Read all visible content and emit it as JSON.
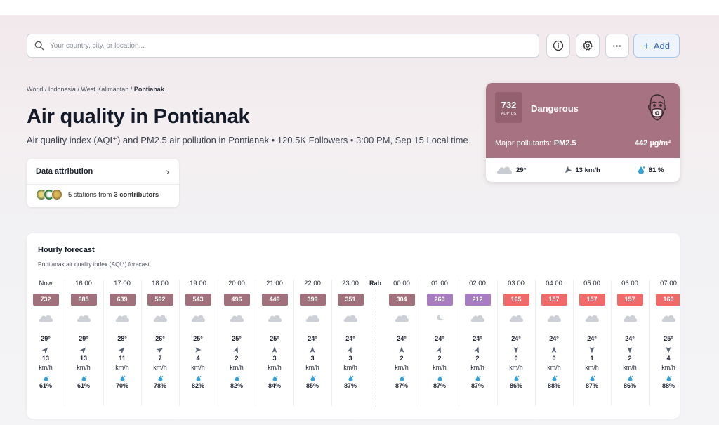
{
  "search": {
    "placeholder": "Your country, city, or location..."
  },
  "toolbar": {
    "add_label": "Add",
    "add_icon": "plus-icon",
    "info_icon": "info-icon",
    "settings_icon": "gear-icon",
    "more_icon": "more-icon",
    "more_label": "···"
  },
  "breadcrumb": {
    "items": [
      "World",
      "Indonesia",
      "West Kalimantan"
    ],
    "current": "Pontianak",
    "sep": " / "
  },
  "page_title": "Air quality in Pontianak",
  "subtitle": "Air quality index (AQI⁺) and PM2.5 air pollution in Pontianak • 120.5K Followers • 3:00 PM, Sep 15 Local time",
  "attribution": {
    "title": "Data attribution",
    "text_prefix": "5 stations from ",
    "contributors": "3 contributors"
  },
  "aqi_card": {
    "value": "732",
    "unit": "AQI⁺ US",
    "status": "Dangerous",
    "pollutant_label": "Major pollutants: ",
    "pollutant": "PM2.5",
    "concentration": "442 µg/m³",
    "colors": {
      "card": "#a77382",
      "box": "#93606f"
    },
    "weather": {
      "temp": "29°",
      "wind": "13 km/h",
      "humidity": "61 %"
    }
  },
  "forecast": {
    "title": "Hourly forecast",
    "subtitle": "Pontianak air quality index (AQI⁺) forecast",
    "day_label": "Rab",
    "hours": [
      {
        "time": "Now",
        "aqi": "732",
        "color": "#a0707c",
        "weather": "cloudy",
        "temp": "29°",
        "wind_dir": 225,
        "wind": "13",
        "unit": "km/h",
        "hum": "61%"
      },
      {
        "time": "16.00",
        "aqi": "685",
        "color": "#a0707c",
        "weather": "cloudy",
        "temp": "29°",
        "wind_dir": 225,
        "wind": "13",
        "unit": "km/h",
        "hum": "61%"
      },
      {
        "time": "17.00",
        "aqi": "639",
        "color": "#a0707c",
        "weather": "cloudy",
        "temp": "28°",
        "wind_dir": 225,
        "wind": "11",
        "unit": "km/h",
        "hum": "70%"
      },
      {
        "time": "18.00",
        "aqi": "592",
        "color": "#a0707c",
        "weather": "cloudy",
        "temp": "26°",
        "wind_dir": 240,
        "wind": "7",
        "unit": "km/h",
        "hum": "78%"
      },
      {
        "time": "19.00",
        "aqi": "543",
        "color": "#a0707c",
        "weather": "cloudy",
        "temp": "25°",
        "wind_dir": 270,
        "wind": "4",
        "unit": "km/h",
        "hum": "82%"
      },
      {
        "time": "20.00",
        "aqi": "496",
        "color": "#a0707c",
        "weather": "cloudy",
        "temp": "25°",
        "wind_dir": 200,
        "wind": "2",
        "unit": "km/h",
        "hum": "82%"
      },
      {
        "time": "21.00",
        "aqi": "449",
        "color": "#a0707c",
        "weather": "cloudy",
        "temp": "25°",
        "wind_dir": 180,
        "wind": "3",
        "unit": "km/h",
        "hum": "84%"
      },
      {
        "time": "22.00",
        "aqi": "399",
        "color": "#a0707c",
        "weather": "partly-cloudy",
        "temp": "24°",
        "wind_dir": 180,
        "wind": "3",
        "unit": "km/h",
        "hum": "85%"
      },
      {
        "time": "23.00",
        "aqi": "351",
        "color": "#a0707c",
        "weather": "partly-cloudy",
        "temp": "24°",
        "wind_dir": 200,
        "wind": "3",
        "unit": "km/h",
        "hum": "87%"
      },
      {
        "time": "00.00",
        "aqi": "304",
        "color": "#a0707c",
        "weather": "partly-cloudy",
        "temp": "24°",
        "wind_dir": 180,
        "wind": "2",
        "unit": "km/h",
        "hum": "87%"
      },
      {
        "time": "01.00",
        "aqi": "260",
        "color": "#a77cc0",
        "weather": "night",
        "temp": "24°",
        "wind_dir": 200,
        "wind": "2",
        "unit": "km/h",
        "hum": "87%"
      },
      {
        "time": "02.00",
        "aqi": "212",
        "color": "#a77cc0",
        "weather": "cloudy",
        "temp": "24°",
        "wind_dir": 200,
        "wind": "2",
        "unit": "km/h",
        "hum": "87%"
      },
      {
        "time": "03.00",
        "aqi": "165",
        "color": "#f06a6a",
        "weather": "cloudy",
        "temp": "24°",
        "wind_dir": 0,
        "wind": "0",
        "unit": "km/h",
        "hum": "86%"
      },
      {
        "time": "04.00",
        "aqi": "157",
        "color": "#f06a6a",
        "weather": "cloudy",
        "temp": "24°",
        "wind_dir": 180,
        "wind": "0",
        "unit": "km/h",
        "hum": "88%"
      },
      {
        "time": "05.00",
        "aqi": "157",
        "color": "#f06a6a",
        "weather": "cloudy",
        "temp": "24°",
        "wind_dir": 0,
        "wind": "1",
        "unit": "km/h",
        "hum": "87%"
      },
      {
        "time": "06.00",
        "aqi": "157",
        "color": "#f06a6a",
        "weather": "cloudy",
        "temp": "24°",
        "wind_dir": 0,
        "wind": "2",
        "unit": "km/h",
        "hum": "86%"
      },
      {
        "time": "07.00",
        "aqi": "160",
        "color": "#f06a6a",
        "weather": "cloudy",
        "temp": "25°",
        "wind_dir": 0,
        "wind": "4",
        "unit": "km/h",
        "hum": "88%"
      }
    ]
  }
}
